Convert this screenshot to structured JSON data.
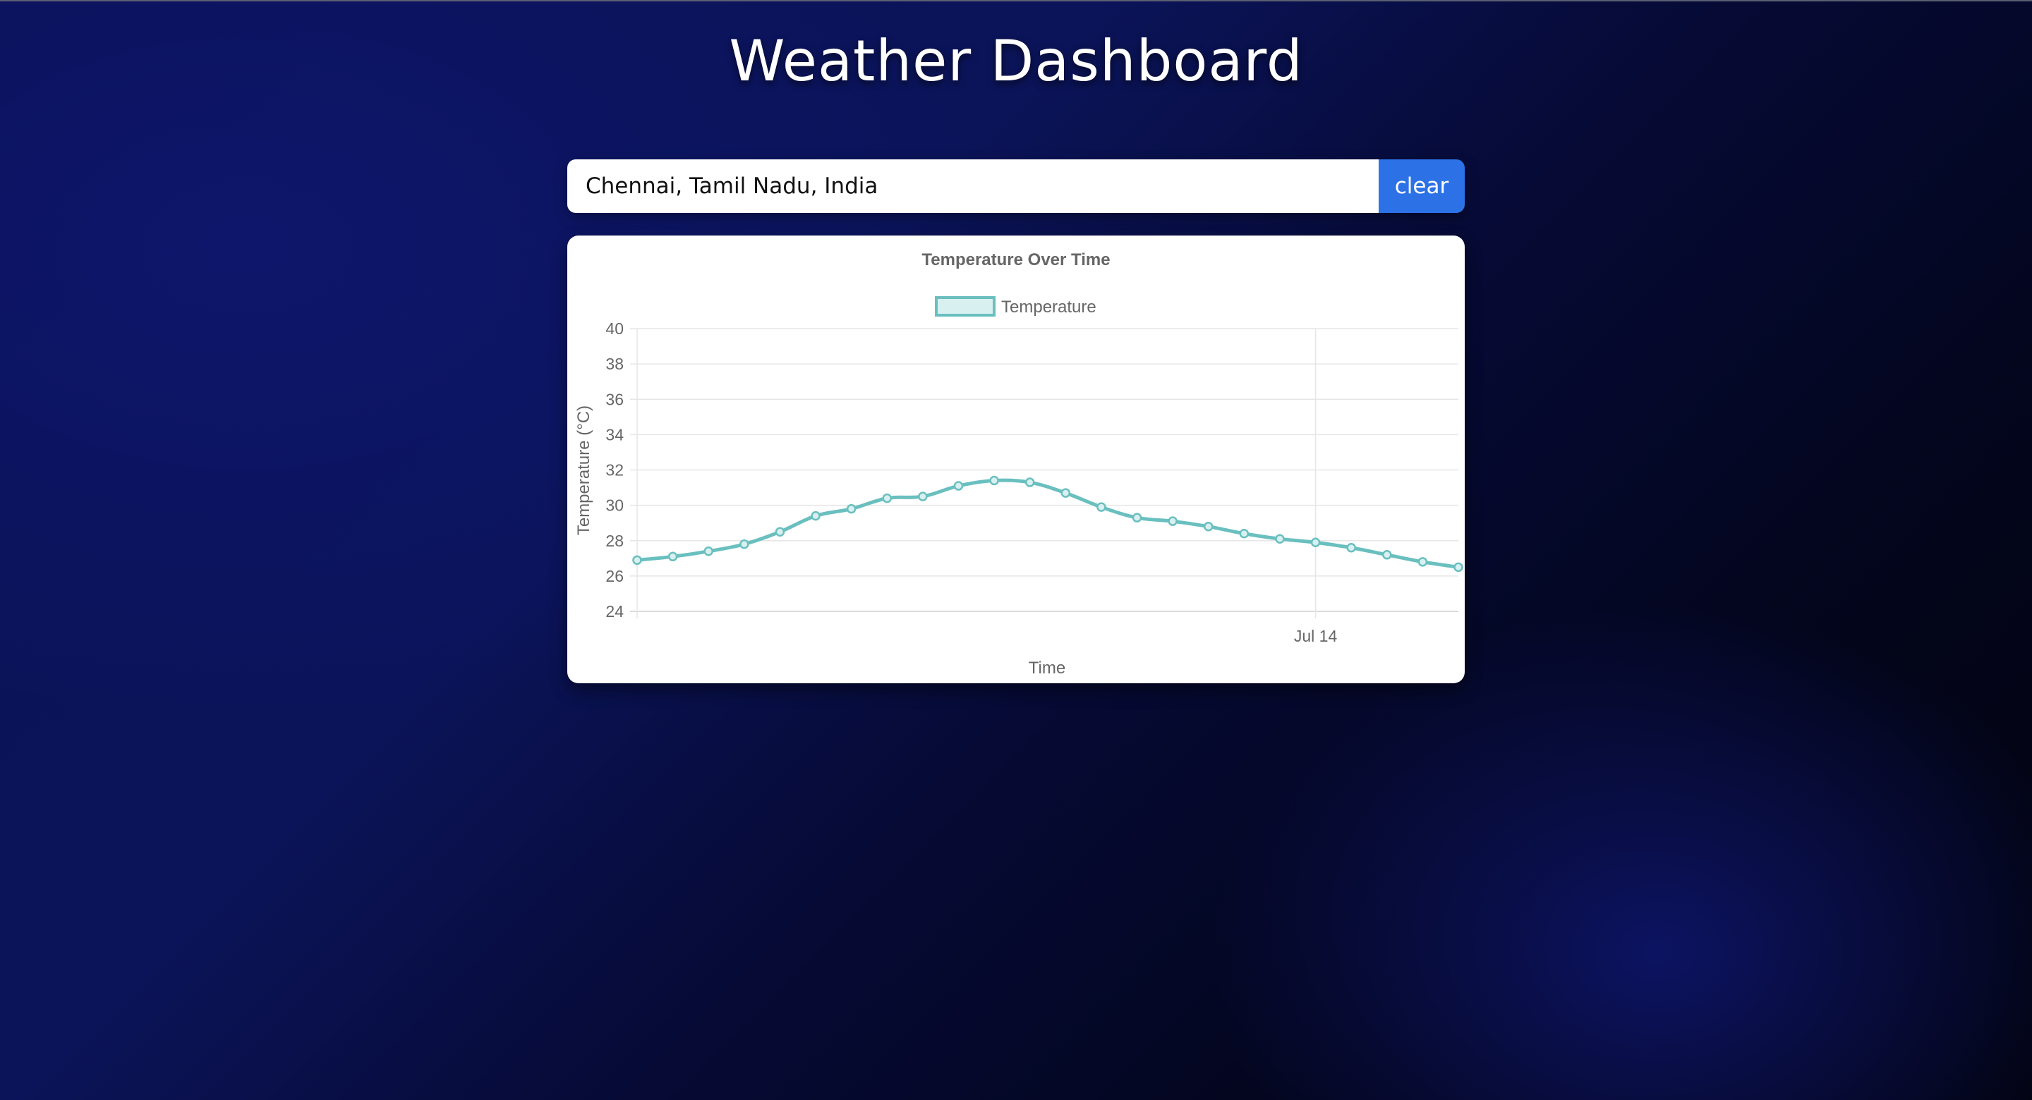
{
  "header": {
    "title": "Weather Dashboard"
  },
  "search": {
    "value": "Chennai, Tamil Nadu, India",
    "clear_label": "clear"
  },
  "colors": {
    "accent": "#2c72e6",
    "series_line": "#6abfbf",
    "series_fill": "#d9f0f0"
  },
  "chart_data": {
    "type": "line",
    "title": "Temperature Over Time",
    "legend": {
      "position": "top",
      "entries": [
        "Temperature"
      ]
    },
    "xlabel": "Time",
    "ylabel": "Temperature (°C)",
    "ylim": [
      24,
      40
    ],
    "yticks": [
      40,
      38,
      36,
      34,
      32,
      30,
      28,
      26,
      24
    ],
    "xticks": [
      {
        "label": "Jul 14",
        "index": 19
      }
    ],
    "grid": true,
    "series": [
      {
        "name": "Temperature",
        "values": [
          26.9,
          27.1,
          27.4,
          27.8,
          28.5,
          29.4,
          29.8,
          30.4,
          30.5,
          31.1,
          31.4,
          31.3,
          30.7,
          29.9,
          29.3,
          29.1,
          28.8,
          28.4,
          28.1,
          27.9,
          27.6,
          27.2,
          26.8,
          26.5
        ]
      }
    ]
  }
}
